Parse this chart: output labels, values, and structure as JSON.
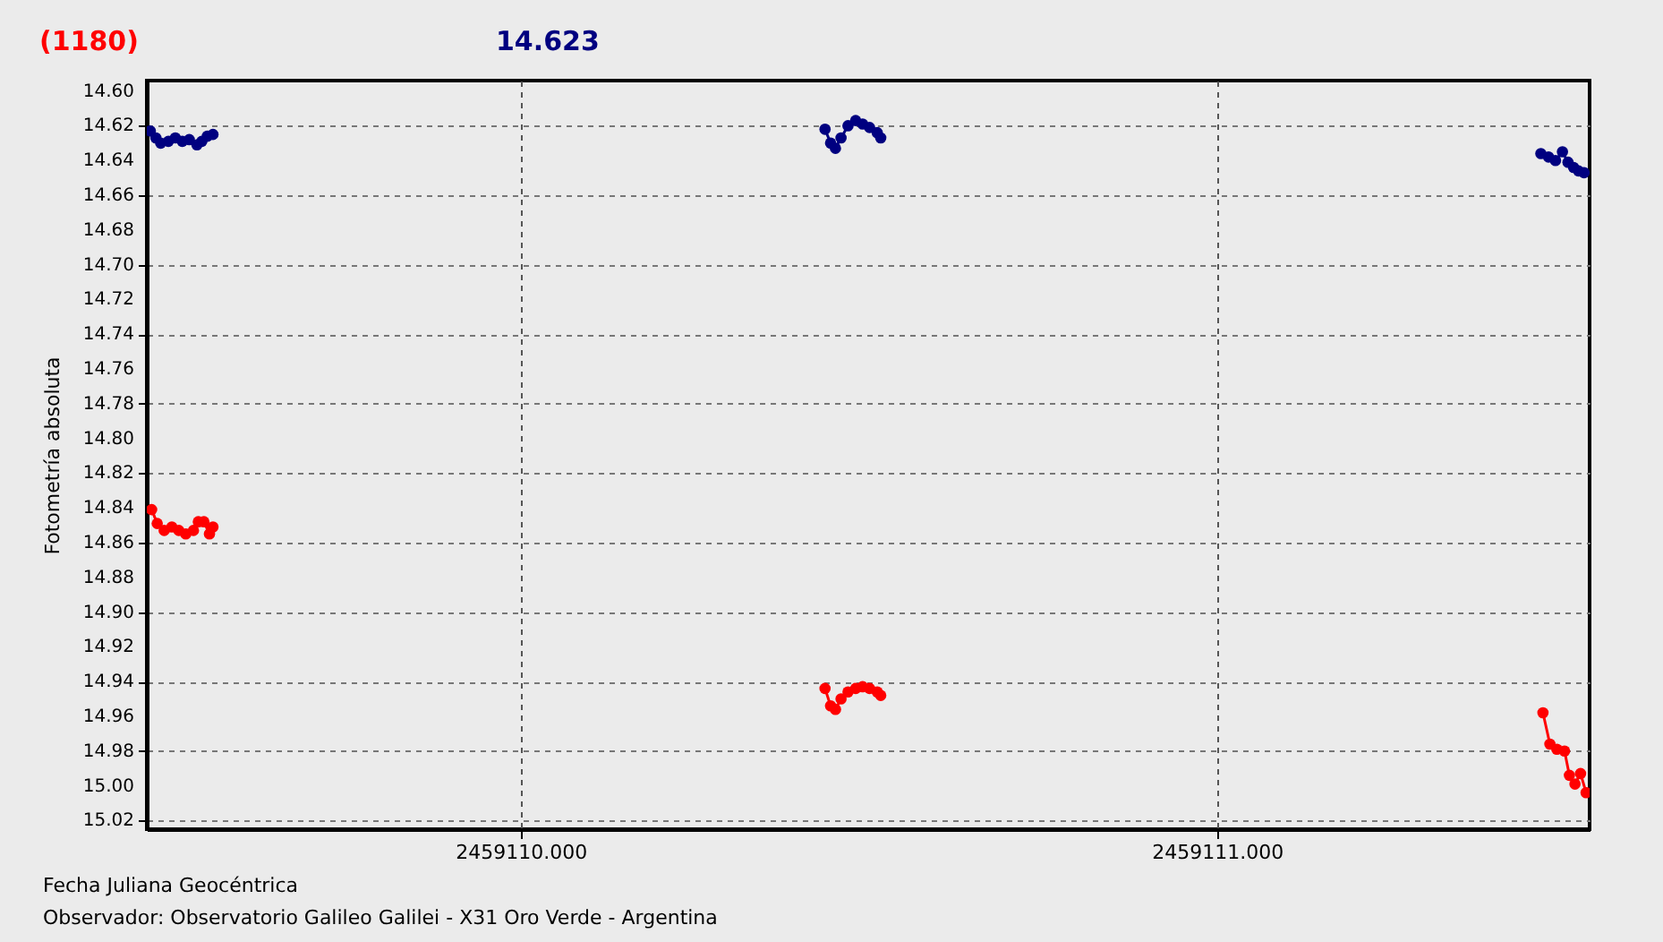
{
  "chart_data": {
    "type": "line",
    "xlabel": "Fecha Juliana Geocéntrica",
    "ylabel": "Fotometría absoluta",
    "annotations": [
      "(1180)",
      "14.623",
      "Observador: Observatorio Galileo Galilei - X31 Oro Verde - Argentina"
    ],
    "xlim": [
      2459109.463,
      2459111.535
    ],
    "xticks": [
      {
        "value": 2459110,
        "label": "2459110.000"
      },
      {
        "value": 2459111,
        "label": "2459111.000"
      }
    ],
    "ylim": [
      15.025,
      14.594
    ],
    "yticks": [
      {
        "value": 14.6,
        "label": "14.60"
      },
      {
        "value": 14.62,
        "label": "14.62"
      },
      {
        "value": 14.64,
        "label": "14.64"
      },
      {
        "value": 14.66,
        "label": "14.66"
      },
      {
        "value": 14.68,
        "label": "14.68"
      },
      {
        "value": 14.7,
        "label": "14.70"
      },
      {
        "value": 14.72,
        "label": "14.72"
      },
      {
        "value": 14.74,
        "label": "14.74"
      },
      {
        "value": 14.76,
        "label": "14.76"
      },
      {
        "value": 14.78,
        "label": "14.78"
      },
      {
        "value": 14.8,
        "label": "14.80"
      },
      {
        "value": 14.82,
        "label": "14.82"
      },
      {
        "value": 14.84,
        "label": "14.84"
      },
      {
        "value": 14.86,
        "label": "14.86"
      },
      {
        "value": 14.88,
        "label": "14.88"
      },
      {
        "value": 14.9,
        "label": "14.90"
      },
      {
        "value": 14.92,
        "label": "14.92"
      },
      {
        "value": 14.94,
        "label": "14.94"
      },
      {
        "value": 14.96,
        "label": "14.96"
      },
      {
        "value": 14.98,
        "label": "14.98"
      },
      {
        "value": 15.0,
        "label": "15.00"
      },
      {
        "value": 15.02,
        "label": "15.02"
      }
    ],
    "grid": true,
    "legend": false,
    "marker": "circle",
    "line_style": "solid",
    "series": [
      {
        "color": "#000080",
        "x": [
          2459109.468,
          2459109.476,
          2459109.483,
          2459109.494,
          2459109.504,
          2459109.514,
          2459109.524,
          2459109.535,
          2459109.542,
          2459109.55,
          2459109.558,
          2459110.0,
          2459110.437,
          2459110.445,
          2459110.452,
          2459110.46,
          2459110.47,
          2459110.481,
          2459110.491,
          2459110.501,
          2459110.512,
          2459110.517,
          2459111.0,
          2459111.465,
          2459111.476,
          2459111.486,
          2459111.496,
          2459111.504,
          2459111.512,
          2459111.519,
          2459111.527
        ],
        "values": [
          14.623,
          14.627,
          14.63,
          14.629,
          14.627,
          14.629,
          14.628,
          14.631,
          14.629,
          14.626,
          14.625,
          null,
          14.622,
          14.63,
          14.633,
          14.627,
          14.62,
          14.617,
          14.619,
          14.621,
          14.624,
          14.627,
          null,
          14.636,
          14.638,
          14.64,
          14.635,
          14.641,
          14.644,
          14.646,
          14.647
        ]
      },
      {
        "color": "#ff0000",
        "x": [
          2459109.47,
          2459109.478,
          2459109.488,
          2459109.499,
          2459109.509,
          2459109.519,
          2459109.53,
          2459109.537,
          2459109.545,
          2459109.553,
          2459109.558,
          2459110.0,
          2459110.437,
          2459110.445,
          2459110.452,
          2459110.46,
          2459110.47,
          2459110.481,
          2459110.491,
          2459110.501,
          2459110.512,
          2459110.517,
          2459111.0,
          2459111.468,
          2459111.478,
          2459111.488,
          2459111.499,
          2459111.506,
          2459111.514,
          2459111.522,
          2459111.53
        ],
        "values": [
          14.841,
          14.849,
          14.853,
          14.851,
          14.853,
          14.855,
          14.853,
          14.848,
          14.848,
          14.855,
          14.851,
          null,
          14.944,
          14.954,
          14.956,
          14.95,
          14.946,
          14.944,
          14.943,
          14.944,
          14.946,
          14.948,
          null,
          14.958,
          14.976,
          14.979,
          14.98,
          14.994,
          14.999,
          14.993,
          15.004
        ]
      }
    ]
  }
}
